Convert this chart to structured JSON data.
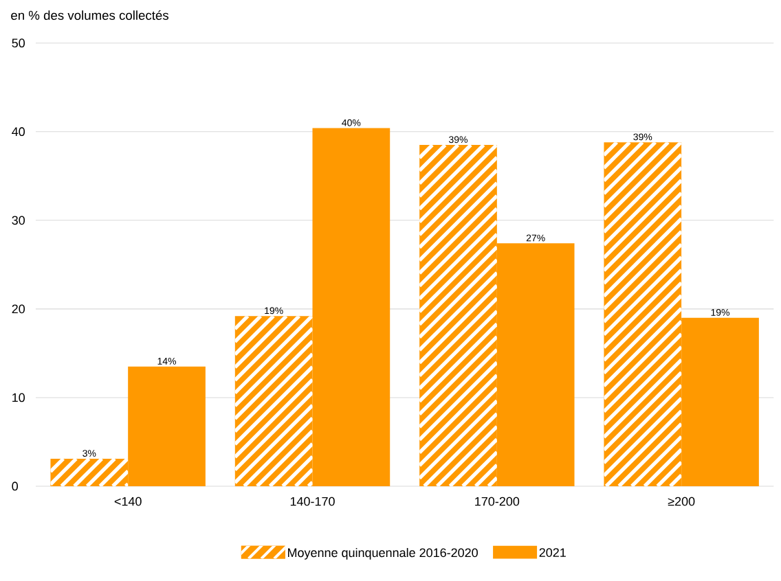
{
  "chart_data": {
    "type": "bar",
    "ylabel": "en % des volumes collectés",
    "categories": [
      "<140",
      "140-170",
      "170-200",
      "≥200"
    ],
    "series": [
      {
        "name": "Moyenne quinquennale 2016-2020",
        "color": "#ff9900",
        "values": [
          3.1,
          19.2,
          38.5,
          38.8
        ],
        "value_labels": [
          "3%",
          "19%",
          "39%",
          "39%"
        ]
      },
      {
        "name": "2021",
        "color": "#ff9900",
        "values": [
          13.5,
          40.4,
          27.4,
          19.0
        ],
        "value_labels": [
          "14%",
          "40%",
          "27%",
          "19%"
        ]
      }
    ],
    "ylim": [
      0,
      50
    ],
    "yticks": [
      0,
      10,
      20,
      30,
      40,
      50
    ],
    "grid": "y",
    "legend": "bottom"
  }
}
